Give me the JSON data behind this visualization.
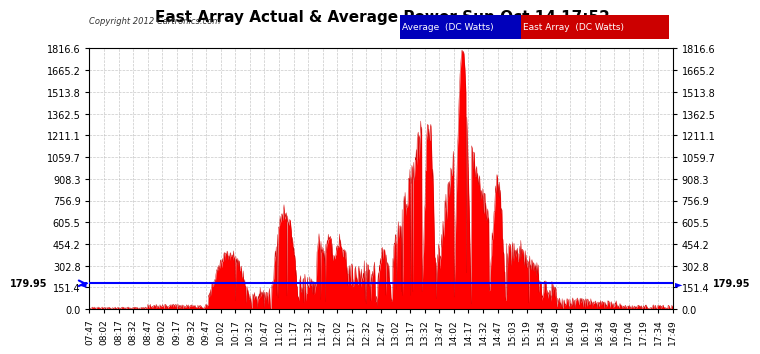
{
  "title": "East Array Actual & Average Power Sun Oct 14 17:52",
  "copyright": "Copyright 2012 Cartronics.com",
  "legend_avg": "Average  (DC Watts)",
  "legend_east": "East Array  (DC Watts)",
  "ylim": [
    0.0,
    1816.6
  ],
  "yticks": [
    0.0,
    151.4,
    302.8,
    454.2,
    605.5,
    756.9,
    908.3,
    1059.7,
    1211.1,
    1362.5,
    1513.8,
    1665.2,
    1816.6
  ],
  "avg_value": 179.95,
  "bg_color": "#ffffff",
  "plot_bg_color": "#ffffff",
  "grid_color": "#bbbbbb",
  "east_fill_color": "#ff0000",
  "east_line_color": "#cc0000",
  "avg_line_color": "#0000ff",
  "title_color": "#000000",
  "title_fontsize": 11,
  "tick_fontsize": 7,
  "xtick_labels": [
    "07:47",
    "08:02",
    "08:17",
    "08:32",
    "08:47",
    "09:02",
    "09:17",
    "09:32",
    "09:47",
    "10:02",
    "10:17",
    "10:32",
    "10:47",
    "11:02",
    "11:17",
    "11:32",
    "11:47",
    "12:02",
    "12:17",
    "12:32",
    "12:47",
    "13:02",
    "13:17",
    "13:32",
    "13:47",
    "14:02",
    "14:17",
    "14:32",
    "14:47",
    "15:03",
    "15:19",
    "15:34",
    "15:49",
    "16:04",
    "16:19",
    "16:34",
    "16:49",
    "17:04",
    "17:19",
    "17:34",
    "17:49"
  ]
}
